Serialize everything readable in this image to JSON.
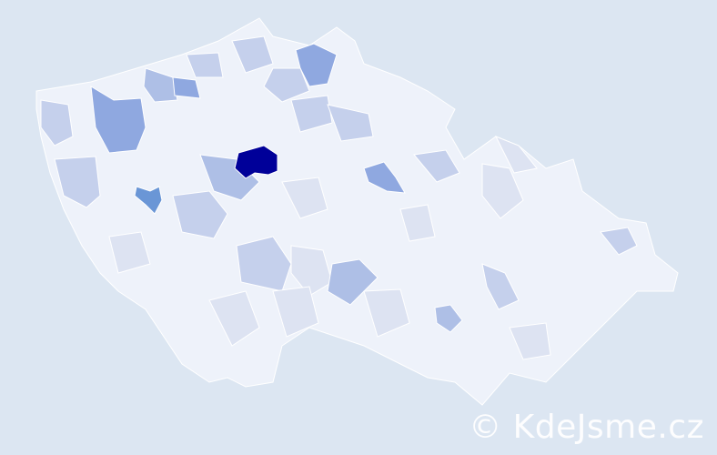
{
  "watermark": "© KdeJsme.cz",
  "colors": {
    "background": "#dce6f2",
    "base": "#eef2fa",
    "level1": "#dde3f2",
    "level2": "#c5d0ec",
    "level3": "#aebfe6",
    "level4": "#8fa8e0",
    "level5": "#6a96d6",
    "max": "#000099"
  }
}
